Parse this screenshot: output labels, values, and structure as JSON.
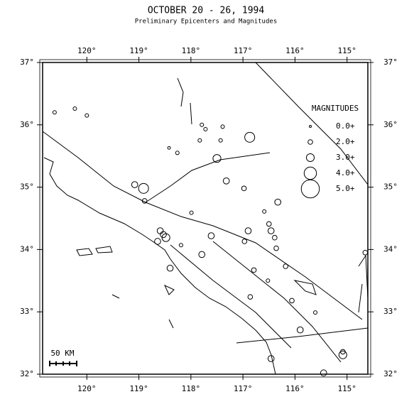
{
  "map": {
    "title": "OCTOBER 20 - 26, 1994",
    "subtitle": "Preliminary Epicenters and Magnitudes",
    "xlim": [
      120.85,
      114.6
    ],
    "ylim": [
      32,
      37
    ],
    "xticks": [
      {
        "value": 120,
        "label": "120°"
      },
      {
        "value": 119,
        "label": "119°"
      },
      {
        "value": 118,
        "label": "118°"
      },
      {
        "value": 117,
        "label": "117°"
      },
      {
        "value": 116,
        "label": "116°"
      },
      {
        "value": 115,
        "label": "115°"
      }
    ],
    "yticks": [
      {
        "value": 37,
        "label": "37°"
      },
      {
        "value": 36,
        "label": "36°"
      },
      {
        "value": 35,
        "label": "35°"
      },
      {
        "value": 34,
        "label": "34°"
      },
      {
        "value": 33,
        "label": "33°"
      },
      {
        "value": 32,
        "label": "32°"
      }
    ],
    "legend_title": "MAGNITUDES",
    "legend": [
      {
        "value": 0,
        "label": "0.0+"
      },
      {
        "value": 2,
        "label": "2.0+"
      },
      {
        "value": 3,
        "label": "3.0+"
      },
      {
        "value": 4,
        "label": "4.0+"
      },
      {
        "value": 5,
        "label": "5.0+"
      }
    ],
    "scale_label": "50 KM",
    "epicenters": [
      {
        "lon": 120.62,
        "lat": 36.2,
        "mag": 1.5
      },
      {
        "lon": 120.23,
        "lat": 36.26,
        "mag": 1.5
      },
      {
        "lon": 120.0,
        "lat": 36.15,
        "mag": 1.5
      },
      {
        "lon": 119.08,
        "lat": 35.04,
        "mag": 2.5
      },
      {
        "lon": 118.91,
        "lat": 34.98,
        "mag": 3.5
      },
      {
        "lon": 118.89,
        "lat": 34.78,
        "mag": 2
      },
      {
        "lon": 118.59,
        "lat": 34.3,
        "mag": 2.5
      },
      {
        "lon": 118.53,
        "lat": 34.24,
        "mag": 2.5
      },
      {
        "lon": 118.48,
        "lat": 34.19,
        "mag": 3
      },
      {
        "lon": 118.64,
        "lat": 34.13,
        "mag": 2.5
      },
      {
        "lon": 118.4,
        "lat": 33.7,
        "mag": 2.5
      },
      {
        "lon": 117.5,
        "lat": 35.46,
        "mag": 3
      },
      {
        "lon": 117.43,
        "lat": 35.75,
        "mag": 1.5
      },
      {
        "lon": 116.87,
        "lat": 35.8,
        "mag": 3.5
      },
      {
        "lon": 117.32,
        "lat": 35.1,
        "mag": 2.5
      },
      {
        "lon": 117.39,
        "lat": 35.97,
        "mag": 1.5
      },
      {
        "lon": 117.79,
        "lat": 36.0,
        "mag": 1.5
      },
      {
        "lon": 116.98,
        "lat": 34.98,
        "mag": 2
      },
      {
        "lon": 116.33,
        "lat": 34.76,
        "mag": 2.5
      },
      {
        "lon": 116.59,
        "lat": 34.61,
        "mag": 1.5
      },
      {
        "lon": 116.5,
        "lat": 34.41,
        "mag": 2
      },
      {
        "lon": 116.46,
        "lat": 34.3,
        "mag": 2.5
      },
      {
        "lon": 116.39,
        "lat": 34.19,
        "mag": 2
      },
      {
        "lon": 116.36,
        "lat": 34.02,
        "mag": 2
      },
      {
        "lon": 116.9,
        "lat": 34.3,
        "mag": 2.5
      },
      {
        "lon": 116.97,
        "lat": 34.13,
        "mag": 2
      },
      {
        "lon": 117.61,
        "lat": 34.22,
        "mag": 2.5
      },
      {
        "lon": 117.79,
        "lat": 33.92,
        "mag": 2.5
      },
      {
        "lon": 116.79,
        "lat": 33.67,
        "mag": 2
      },
      {
        "lon": 116.52,
        "lat": 33.5,
        "mag": 1.5
      },
      {
        "lon": 116.86,
        "lat": 33.24,
        "mag": 2
      },
      {
        "lon": 116.18,
        "lat": 33.73,
        "mag": 2
      },
      {
        "lon": 116.06,
        "lat": 33.18,
        "mag": 2
      },
      {
        "lon": 115.9,
        "lat": 32.71,
        "mag": 2.5
      },
      {
        "lon": 115.08,
        "lat": 32.31,
        "mag": 3
      },
      {
        "lon": 115.08,
        "lat": 32.36,
        "mag": 2
      },
      {
        "lon": 116.46,
        "lat": 32.25,
        "mag": 2.5
      },
      {
        "lon": 115.45,
        "lat": 32.02,
        "mag": 2.5
      },
      {
        "lon": 115.61,
        "lat": 32.99,
        "mag": 1.5
      },
      {
        "lon": 117.99,
        "lat": 34.59,
        "mag": 1.5
      },
      {
        "lon": 118.19,
        "lat": 34.07,
        "mag": 1.5
      },
      {
        "lon": 118.42,
        "lat": 35.63,
        "mag": 1
      },
      {
        "lon": 118.26,
        "lat": 35.55,
        "mag": 1.5
      },
      {
        "lon": 117.83,
        "lat": 35.75,
        "mag": 1.5
      },
      {
        "lon": 117.72,
        "lat": 35.93,
        "mag": 1.5
      },
      {
        "lon": 114.65,
        "lat": 33.95,
        "mag": 2
      }
    ]
  }
}
